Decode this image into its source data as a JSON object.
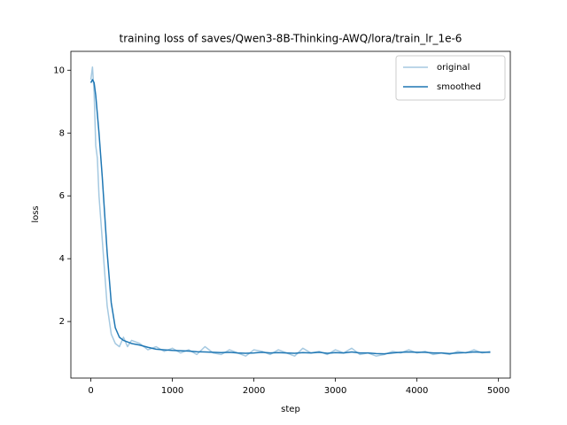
{
  "chart_data": {
    "type": "line",
    "title": "training loss of saves/Qwen3-8B-Thinking-AWQ/lora/train_lr_1e-6",
    "x_label": "step",
    "y_label": "loss",
    "x": [
      0,
      20,
      40,
      60,
      80,
      100,
      120,
      140,
      160,
      180,
      200,
      250,
      300,
      350,
      400,
      450,
      500,
      600,
      700,
      800,
      900,
      1000,
      1100,
      1200,
      1300,
      1400,
      1500,
      1600,
      1700,
      1800,
      1900,
      2000,
      2100,
      2200,
      2300,
      2400,
      2500,
      2600,
      2700,
      2800,
      2900,
      3000,
      3100,
      3200,
      3300,
      3400,
      3500,
      3600,
      3700,
      3800,
      3900,
      4000,
      4100,
      4200,
      4300,
      4400,
      4500,
      4600,
      4700,
      4800,
      4900
    ],
    "series": [
      {
        "name": "original",
        "color": "#1f77b4",
        "opacity": 0.4,
        "values": [
          9.7,
          10.1,
          9.3,
          7.6,
          7.2,
          6.0,
          5.3,
          4.6,
          3.9,
          3.2,
          2.5,
          1.6,
          1.3,
          1.2,
          1.5,
          1.2,
          1.4,
          1.3,
          1.1,
          1.2,
          1.05,
          1.15,
          1.0,
          1.1,
          0.95,
          1.2,
          1.0,
          0.95,
          1.1,
          1.0,
          0.9,
          1.1,
          1.05,
          0.95,
          1.1,
          1.0,
          0.9,
          1.15,
          1.0,
          1.05,
          0.95,
          1.1,
          1.0,
          1.15,
          0.95,
          1.0,
          0.9,
          0.95,
          1.05,
          1.0,
          1.1,
          1.0,
          1.05,
          0.95,
          1.0,
          0.95,
          1.05,
          1.0,
          1.1,
          1.0,
          1.05
        ]
      },
      {
        "name": "smoothed",
        "color": "#1f77b4",
        "opacity": 1,
        "values": [
          9.6,
          9.7,
          9.6,
          9.2,
          8.6,
          8.0,
          7.3,
          6.6,
          5.8,
          5.0,
          4.2,
          2.6,
          1.8,
          1.5,
          1.4,
          1.35,
          1.3,
          1.25,
          1.18,
          1.12,
          1.1,
          1.08,
          1.07,
          1.06,
          1.04,
          1.03,
          1.02,
          1.01,
          1.02,
          1.0,
          0.99,
          1.0,
          1.02,
          1.0,
          1.01,
          1.0,
          0.99,
          1.01,
          1.0,
          1.02,
          0.99,
          1.01,
          1.0,
          1.03,
          1.0,
          1.0,
          0.98,
          0.97,
          1.0,
          1.02,
          1.03,
          1.02,
          1.02,
          1.0,
          1.0,
          0.98,
          1.0,
          1.01,
          1.03,
          1.02,
          1.02
        ]
      }
    ],
    "xlim": [
      -245,
      5145
    ],
    "ylim": [
      0.2,
      10.6
    ],
    "xticks": [
      0,
      1000,
      2000,
      3000,
      4000,
      5000
    ],
    "yticks": [
      2,
      4,
      6,
      8,
      10
    ],
    "legend": "upper right",
    "grid": false
  }
}
